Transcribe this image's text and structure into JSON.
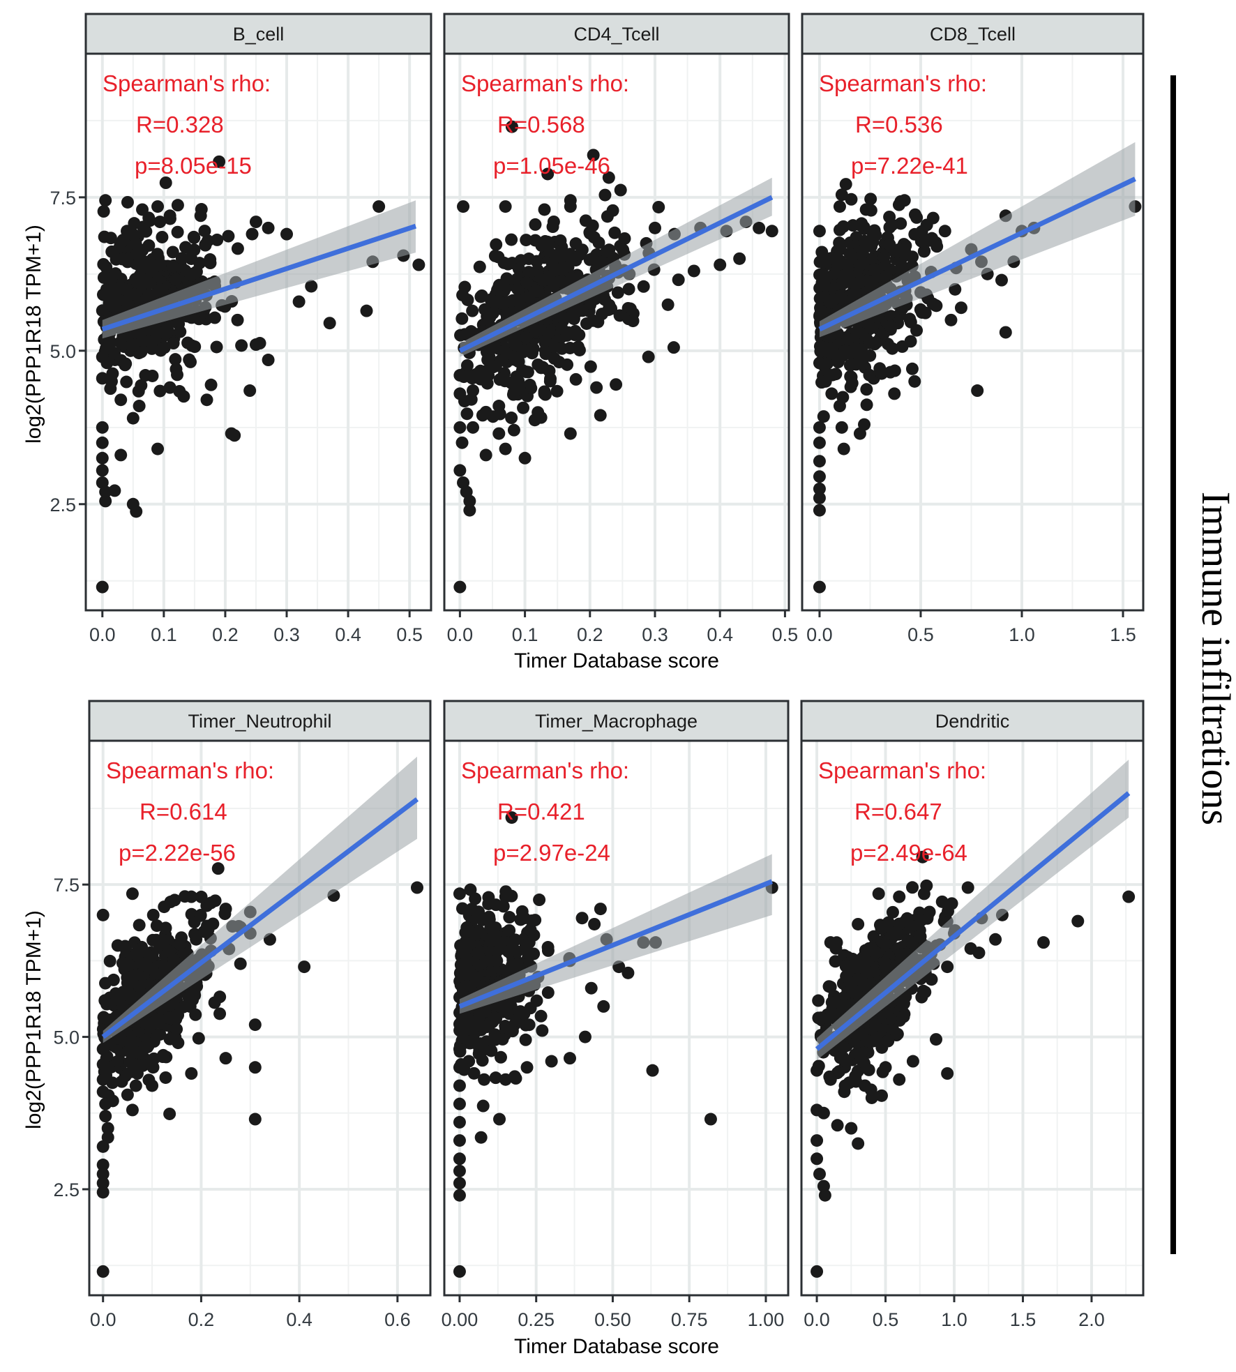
{
  "figure": {
    "side_label": "Immune infiltrations",
    "colors": {
      "point": "#1a1a1a",
      "line": "#3f6fdb",
      "ribbon": "#9aa2a6",
      "strip_fill": "#d9dede",
      "annotation": "#e8202a",
      "grid_major": "#e6eaea",
      "grid_minor": "#f0f2f2",
      "frame": "#2b2f33"
    }
  },
  "chart_data": [
    {
      "type": "scatter",
      "title": "B_cell",
      "xlabel": "",
      "ylabel": "log2(PPP1R18 TPM+1)",
      "xlim": [
        -0.027,
        0.535
      ],
      "ylim": [
        0.77,
        9.84
      ],
      "xticks": [
        0.0,
        0.1,
        0.2,
        0.3,
        0.4,
        0.5
      ],
      "xtick_labels": [
        "0.0",
        "0.1",
        "0.2",
        "0.3",
        "0.4",
        "0.5"
      ],
      "yticks": [
        2.5,
        5.0,
        7.5
      ],
      "ytick_labels": [
        "2.5",
        "5.0",
        "7.5"
      ],
      "grid": true,
      "annotation": {
        "heading": "Spearman's rho:",
        "r": "R=0.328",
        "p": "p=8.05e-15"
      },
      "fit": {
        "x": [
          0.0,
          0.51
        ],
        "y": [
          5.35,
          7.03
        ],
        "ci_low_end": 6.6,
        "ci_high_end": 7.45,
        "ci_low_start": 5.2,
        "ci_high_start": 5.5
      },
      "cluster": {
        "n": 420,
        "cx": 0.09,
        "cy": 5.9,
        "sx": 0.055,
        "sy": 0.55,
        "slope": 4.0,
        "seed": 11
      },
      "points": [
        [
          0.005,
          7.45
        ],
        [
          0.04,
          6.95
        ],
        [
          0.065,
          7.3
        ],
        [
          0.09,
          7.35
        ],
        [
          0.11,
          7.2
        ],
        [
          0.16,
          7.2
        ],
        [
          0.19,
          8.08
        ],
        [
          0.25,
          7.1
        ],
        [
          0.27,
          7.0
        ],
        [
          0.3,
          6.9
        ],
        [
          0.45,
          7.35
        ],
        [
          0.44,
          6.45
        ],
        [
          0.49,
          6.55
        ],
        [
          0.515,
          6.4
        ],
        [
          0.34,
          6.05
        ],
        [
          0.37,
          5.45
        ],
        [
          0.43,
          5.65
        ],
        [
          0.32,
          5.8
        ],
        [
          0.22,
          5.5
        ],
        [
          0.25,
          5.1
        ],
        [
          0.27,
          4.85
        ],
        [
          0.24,
          4.35
        ],
        [
          0.21,
          3.65
        ],
        [
          0.215,
          3.62
        ],
        [
          0.17,
          4.2
        ],
        [
          0.11,
          4.4
        ],
        [
          0.09,
          3.4
        ],
        [
          0.06,
          4.1
        ],
        [
          0.03,
          4.2
        ],
        [
          0.0,
          4.55
        ],
        [
          0.0,
          4.9
        ],
        [
          0.0,
          3.75
        ],
        [
          0.0,
          3.5
        ],
        [
          0.0,
          3.25
        ],
        [
          0.0,
          3.05
        ],
        [
          0.0,
          2.85
        ],
        [
          0.005,
          2.7
        ],
        [
          0.005,
          2.55
        ],
        [
          0.02,
          2.72
        ],
        [
          0.05,
          2.5
        ],
        [
          0.055,
          2.38
        ],
        [
          0.03,
          3.3
        ],
        [
          0.0,
          1.15
        ],
        [
          0.015,
          4.5
        ],
        [
          0.05,
          3.9
        ],
        [
          0.07,
          4.6
        ],
        [
          0.12,
          4.7
        ]
      ]
    },
    {
      "type": "scatter",
      "title": "CD4_Tcell",
      "xlabel": "Timer Database score",
      "ylabel": "",
      "xlim": [
        -0.024,
        0.506
      ],
      "ylim": [
        0.77,
        9.84
      ],
      "xticks": [
        0.0,
        0.1,
        0.2,
        0.3,
        0.4,
        0.5
      ],
      "xtick_labels": [
        "0.0",
        "0.1",
        "0.2",
        "0.3",
        "0.4",
        "0.5"
      ],
      "yticks": [
        2.5,
        5.0,
        7.5
      ],
      "ytick_labels": [
        "2.5",
        "5.0",
        "7.5"
      ],
      "grid": true,
      "annotation": {
        "heading": "Spearman's rho:",
        "r": "R=0.568",
        "p": "p=1.05e-46"
      },
      "fit": {
        "x": [
          0.0,
          0.48
        ],
        "y": [
          5.0,
          7.5
        ],
        "ci_low_end": 7.2,
        "ci_high_end": 7.82,
        "ci_low_start": 4.9,
        "ci_high_start": 5.12
      },
      "cluster": {
        "n": 460,
        "cx": 0.14,
        "cy": 5.8,
        "sx": 0.065,
        "sy": 0.6,
        "slope": 5.0,
        "seed": 23
      },
      "points": [
        [
          0.005,
          7.35
        ],
        [
          0.07,
          7.35
        ],
        [
          0.13,
          7.3
        ],
        [
          0.17,
          7.45
        ],
        [
          0.17,
          7.35
        ],
        [
          0.08,
          8.65
        ],
        [
          0.135,
          7.88
        ],
        [
          0.3,
          7.0
        ],
        [
          0.33,
          6.9
        ],
        [
          0.37,
          7.0
        ],
        [
          0.41,
          6.95
        ],
        [
          0.44,
          7.1
        ],
        [
          0.46,
          7.0
        ],
        [
          0.48,
          6.95
        ],
        [
          0.43,
          6.5
        ],
        [
          0.4,
          6.4
        ],
        [
          0.36,
          6.3
        ],
        [
          0.32,
          5.75
        ],
        [
          0.29,
          4.9
        ],
        [
          0.24,
          4.45
        ],
        [
          0.21,
          4.4
        ],
        [
          0.17,
          3.65
        ],
        [
          0.13,
          4.3
        ],
        [
          0.1,
          3.25
        ],
        [
          0.07,
          3.4
        ],
        [
          0.06,
          3.65
        ],
        [
          0.04,
          3.3
        ],
        [
          0.02,
          3.75
        ],
        [
          0.0,
          3.75
        ],
        [
          0.0,
          3.05
        ],
        [
          0.005,
          2.85
        ],
        [
          0.01,
          2.7
        ],
        [
          0.015,
          2.55
        ],
        [
          0.015,
          2.4
        ],
        [
          0.0,
          1.15
        ],
        [
          0.04,
          4.0
        ],
        [
          0.0,
          4.3
        ],
        [
          0.0,
          4.6
        ],
        [
          0.02,
          4.35
        ],
        [
          0.06,
          4.1
        ],
        [
          0.09,
          4.5
        ]
      ]
    },
    {
      "type": "scatter",
      "title": "CD8_Tcell",
      "xlabel": "",
      "ylabel": "",
      "xlim": [
        -0.086,
        1.6
      ],
      "ylim": [
        0.77,
        9.84
      ],
      "xticks": [
        0.0,
        0.5,
        1.0,
        1.5
      ],
      "xtick_labels": [
        "0.0",
        "0.5",
        "1.0",
        "1.5"
      ],
      "yticks": [
        2.5,
        5.0,
        7.5
      ],
      "ytick_labels": [
        "2.5",
        "5.0",
        "7.5"
      ],
      "grid": true,
      "annotation": {
        "heading": "Spearman's rho:",
        "r": "R=0.536",
        "p": "p=7.22e-41"
      },
      "fit": {
        "x": [
          0.0,
          1.56
        ],
        "y": [
          5.35,
          7.8
        ],
        "ci_low_end": 7.2,
        "ci_high_end": 8.4,
        "ci_low_start": 5.22,
        "ci_high_start": 5.48
      },
      "cluster": {
        "n": 430,
        "cx": 0.22,
        "cy": 5.9,
        "sx": 0.16,
        "sy": 0.6,
        "slope": 1.6,
        "seed": 37
      },
      "points": [
        [
          0.0,
          6.95
        ],
        [
          0.1,
          7.35
        ],
        [
          0.23,
          7.3
        ],
        [
          0.42,
          7.45
        ],
        [
          0.53,
          7.05
        ],
        [
          0.62,
          6.95
        ],
        [
          0.58,
          6.7
        ],
        [
          0.75,
          6.65
        ],
        [
          0.8,
          6.45
        ],
        [
          0.92,
          7.2
        ],
        [
          1.0,
          6.95
        ],
        [
          1.06,
          7.0
        ],
        [
          0.83,
          6.25
        ],
        [
          0.9,
          6.15
        ],
        [
          0.96,
          6.45
        ],
        [
          0.67,
          6.0
        ],
        [
          0.7,
          5.7
        ],
        [
          0.65,
          5.5
        ],
        [
          0.5,
          5.95
        ],
        [
          0.43,
          5.75
        ],
        [
          0.35,
          5.4
        ],
        [
          0.35,
          4.65
        ],
        [
          0.47,
          4.5
        ],
        [
          0.78,
          4.35
        ],
        [
          0.92,
          5.3
        ],
        [
          1.56,
          7.35
        ],
        [
          0.37,
          4.3
        ],
        [
          0.1,
          4.1
        ],
        [
          0.11,
          3.75
        ],
        [
          0.12,
          3.4
        ],
        [
          0.2,
          3.65
        ],
        [
          0.0,
          3.75
        ],
        [
          0.0,
          3.5
        ],
        [
          0.0,
          3.2
        ],
        [
          0.0,
          2.95
        ],
        [
          0.0,
          2.75
        ],
        [
          0.0,
          2.6
        ],
        [
          0.0,
          2.4
        ],
        [
          0.0,
          1.15
        ],
        [
          0.03,
          4.5
        ],
        [
          0.0,
          4.8
        ],
        [
          0.06,
          4.3
        ]
      ]
    },
    {
      "type": "scatter",
      "title": "Timer_Neutrophil",
      "xlabel": "",
      "ylabel": "log2(PPP1R18 TPM+1)",
      "xlim": [
        -0.028,
        0.667
      ],
      "ylim": [
        0.76,
        9.86
      ],
      "xticks": [
        0.0,
        0.2,
        0.4,
        0.6
      ],
      "xtick_labels": [
        "0.0",
        "0.2",
        "0.4",
        "0.6"
      ],
      "yticks": [
        2.5,
        5.0,
        7.5
      ],
      "ytick_labels": [
        "2.5",
        "5.0",
        "7.5"
      ],
      "grid": true,
      "annotation": {
        "heading": "Spearman's rho:",
        "r": "R=0.614",
        "p": "p=2.22e-56"
      },
      "fit": {
        "x": [
          0.0,
          0.64
        ],
        "y": [
          5.0,
          8.9
        ],
        "ci_low_end": 8.25,
        "ci_high_end": 9.6,
        "ci_low_start": 4.9,
        "ci_high_start": 5.1
      },
      "cluster": {
        "n": 470,
        "cx": 0.12,
        "cy": 5.8,
        "sx": 0.055,
        "sy": 0.5,
        "slope": 7.0,
        "seed": 41
      },
      "points": [
        [
          0.0,
          7.0
        ],
        [
          0.03,
          6.5
        ],
        [
          0.06,
          7.35
        ],
        [
          0.18,
          7.3
        ],
        [
          0.22,
          7.2
        ],
        [
          0.25,
          7.1
        ],
        [
          0.28,
          6.8
        ],
        [
          0.3,
          7.05
        ],
        [
          0.3,
          6.7
        ],
        [
          0.28,
          6.2
        ],
        [
          0.34,
          6.6
        ],
        [
          0.41,
          6.15
        ],
        [
          0.47,
          7.32
        ],
        [
          0.64,
          7.45
        ],
        [
          0.31,
          5.2
        ],
        [
          0.31,
          4.5
        ],
        [
          0.31,
          3.65
        ],
        [
          0.25,
          4.65
        ],
        [
          0.18,
          4.4
        ],
        [
          0.1,
          4.2
        ],
        [
          0.06,
          3.8
        ],
        [
          0.05,
          4.05
        ],
        [
          0.02,
          3.95
        ],
        [
          0.0,
          4.8
        ],
        [
          0.0,
          4.55
        ],
        [
          0.0,
          4.3
        ],
        [
          0.0,
          4.1
        ],
        [
          0.005,
          3.9
        ],
        [
          0.005,
          3.7
        ],
        [
          0.01,
          3.5
        ],
        [
          0.01,
          3.35
        ],
        [
          0.0,
          3.2
        ],
        [
          0.0,
          2.9
        ],
        [
          0.0,
          2.75
        ],
        [
          0.0,
          2.6
        ],
        [
          0.0,
          2.45
        ],
        [
          0.0,
          1.15
        ],
        [
          0.03,
          4.6
        ],
        [
          0.07,
          4.4
        ],
        [
          0.09,
          4.9
        ]
      ]
    },
    {
      "type": "scatter",
      "title": "Timer_Macrophage",
      "xlabel": "Timer Database score",
      "ylabel": "",
      "xlim": [
        -0.05,
        1.073
      ],
      "ylim": [
        0.76,
        9.86
      ],
      "xticks": [
        0.0,
        0.25,
        0.5,
        0.75,
        1.0
      ],
      "xtick_labels": [
        "0.00",
        "0.25",
        "0.50",
        "0.75",
        "1.00"
      ],
      "yticks": [
        2.5,
        5.0,
        7.5
      ],
      "ytick_labels": [
        "2.5",
        "5.0",
        "7.5"
      ],
      "grid": true,
      "annotation": {
        "heading": "Spearman's rho:",
        "r": "R=0.421",
        "p": "p=2.97e-24"
      },
      "fit": {
        "x": [
          0.0,
          1.02
        ],
        "y": [
          5.5,
          7.55
        ],
        "ci_low_end": 7.0,
        "ci_high_end": 8.0,
        "ci_low_start": 5.38,
        "ci_high_start": 5.62
      },
      "cluster": {
        "n": 430,
        "cx": 0.1,
        "cy": 5.95,
        "sx": 0.09,
        "sy": 0.55,
        "slope": 2.4,
        "seed": 53
      },
      "points": [
        [
          0.0,
          7.35
        ],
        [
          0.04,
          7.1
        ],
        [
          0.15,
          7.3
        ],
        [
          0.26,
          7.25
        ],
        [
          0.17,
          8.6
        ],
        [
          0.4,
          6.95
        ],
        [
          0.46,
          7.1
        ],
        [
          0.44,
          6.85
        ],
        [
          0.48,
          6.6
        ],
        [
          0.36,
          6.25
        ],
        [
          0.43,
          5.8
        ],
        [
          0.52,
          6.15
        ],
        [
          0.55,
          6.05
        ],
        [
          0.6,
          6.55
        ],
        [
          0.64,
          6.55
        ],
        [
          1.02,
          7.45
        ],
        [
          0.47,
          5.5
        ],
        [
          0.41,
          5.0
        ],
        [
          0.3,
          4.6
        ],
        [
          0.22,
          4.5
        ],
        [
          0.18,
          4.35
        ],
        [
          0.15,
          4.3
        ],
        [
          0.13,
          3.65
        ],
        [
          0.07,
          3.35
        ],
        [
          0.36,
          4.65
        ],
        [
          0.63,
          4.45
        ],
        [
          0.82,
          3.65
        ],
        [
          0.0,
          4.8
        ],
        [
          0.0,
          4.5
        ],
        [
          0.0,
          4.2
        ],
        [
          0.0,
          3.9
        ],
        [
          0.0,
          3.6
        ],
        [
          0.0,
          3.3
        ],
        [
          0.0,
          3.0
        ],
        [
          0.0,
          2.8
        ],
        [
          0.0,
          2.6
        ],
        [
          0.0,
          2.4
        ],
        [
          0.0,
          1.15
        ],
        [
          0.03,
          4.6
        ],
        [
          0.08,
          4.3
        ],
        [
          0.05,
          4.9
        ]
      ]
    },
    {
      "type": "scatter",
      "title": "Dendritic",
      "xlabel": "",
      "ylabel": "",
      "xlim": [
        -0.112,
        2.376
      ],
      "ylim": [
        0.76,
        9.86
      ],
      "xticks": [
        0.0,
        0.5,
        1.0,
        1.5,
        2.0
      ],
      "xtick_labels": [
        "0.0",
        "0.5",
        "1.0",
        "1.5",
        "2.0"
      ],
      "yticks": [
        2.5,
        5.0,
        7.5
      ],
      "ytick_labels": [
        "2.5",
        "5.0",
        "7.5"
      ],
      "grid": true,
      "annotation": {
        "heading": "Spearman's rho:",
        "r": "R=0.647",
        "p": "p=2.49e-64"
      },
      "fit": {
        "x": [
          0.0,
          2.27
        ],
        "y": [
          4.8,
          9.0
        ],
        "ci_low_end": 8.6,
        "ci_high_end": 9.55,
        "ci_low_start": 4.62,
        "ci_high_start": 4.98
      },
      "cluster": {
        "n": 460,
        "cx": 0.5,
        "cy": 5.9,
        "sx": 0.22,
        "sy": 0.45,
        "slope": 1.9,
        "seed": 67
      },
      "points": [
        [
          0.45,
          7.35
        ],
        [
          0.6,
          7.3
        ],
        [
          1.1,
          7.45
        ],
        [
          0.82,
          7.05
        ],
        [
          0.3,
          6.85
        ],
        [
          0.1,
          6.55
        ],
        [
          1.0,
          6.7
        ],
        [
          1.3,
          6.6
        ],
        [
          1.65,
          6.55
        ],
        [
          1.9,
          6.9
        ],
        [
          2.27,
          7.3
        ],
        [
          1.2,
          6.95
        ],
        [
          1.35,
          7.0
        ],
        [
          0.85,
          6.2
        ],
        [
          0.95,
          6.15
        ],
        [
          1.12,
          6.45
        ],
        [
          1.18,
          6.38
        ],
        [
          0.95,
          4.4
        ],
        [
          0.05,
          4.95
        ],
        [
          0.0,
          4.45
        ],
        [
          0.05,
          3.75
        ],
        [
          0.15,
          3.55
        ],
        [
          0.25,
          3.5
        ],
        [
          0.3,
          3.25
        ],
        [
          0.0,
          3.8
        ],
        [
          0.0,
          3.3
        ],
        [
          0.0,
          3.0
        ],
        [
          0.02,
          2.75
        ],
        [
          0.05,
          2.55
        ],
        [
          0.06,
          2.4
        ],
        [
          0.0,
          1.15
        ],
        [
          0.1,
          4.3
        ],
        [
          0.2,
          4.1
        ],
        [
          0.35,
          4.2
        ],
        [
          0.4,
          4.0
        ],
        [
          0.5,
          4.5
        ],
        [
          0.6,
          4.3
        ],
        [
          0.7,
          4.6
        ]
      ]
    }
  ]
}
